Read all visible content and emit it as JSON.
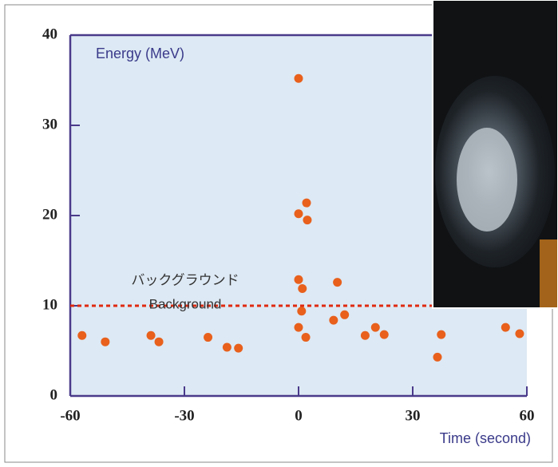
{
  "chart_data": {
    "type": "scatter",
    "y_label": "Energy (MeV)",
    "x_label": "Time (second)",
    "annotation_ja": "バックグラウンド",
    "annotation_en": "Background",
    "background_level": 10,
    "background_color": "#e02a10",
    "color": "#e8601c",
    "xlim": [
      -60,
      60
    ],
    "ylim": [
      0,
      40
    ],
    "xticks": [
      -60,
      -30,
      0,
      30,
      60
    ],
    "yticks": [
      0,
      10,
      20,
      30,
      40
    ],
    "x": [
      -56.9,
      -50.8,
      -38.8,
      -36.7,
      -23.8,
      -18.8,
      -15.8,
      0,
      0,
      2.1,
      2.3,
      0,
      1.0,
      0.8,
      0,
      1.9,
      9.2,
      10.2,
      12.1,
      17.5,
      20.2,
      22.5,
      36.5,
      37.5,
      54.4,
      58.1
    ],
    "values": [
      6.7,
      6.0,
      6.7,
      6.0,
      6.5,
      5.4,
      5.3,
      35.2,
      20.2,
      21.4,
      19.5,
      12.9,
      11.9,
      9.4,
      7.6,
      6.5,
      8.4,
      12.6,
      9.0,
      6.7,
      7.6,
      6.8,
      4.3,
      6.8,
      7.6,
      6.9
    ]
  }
}
